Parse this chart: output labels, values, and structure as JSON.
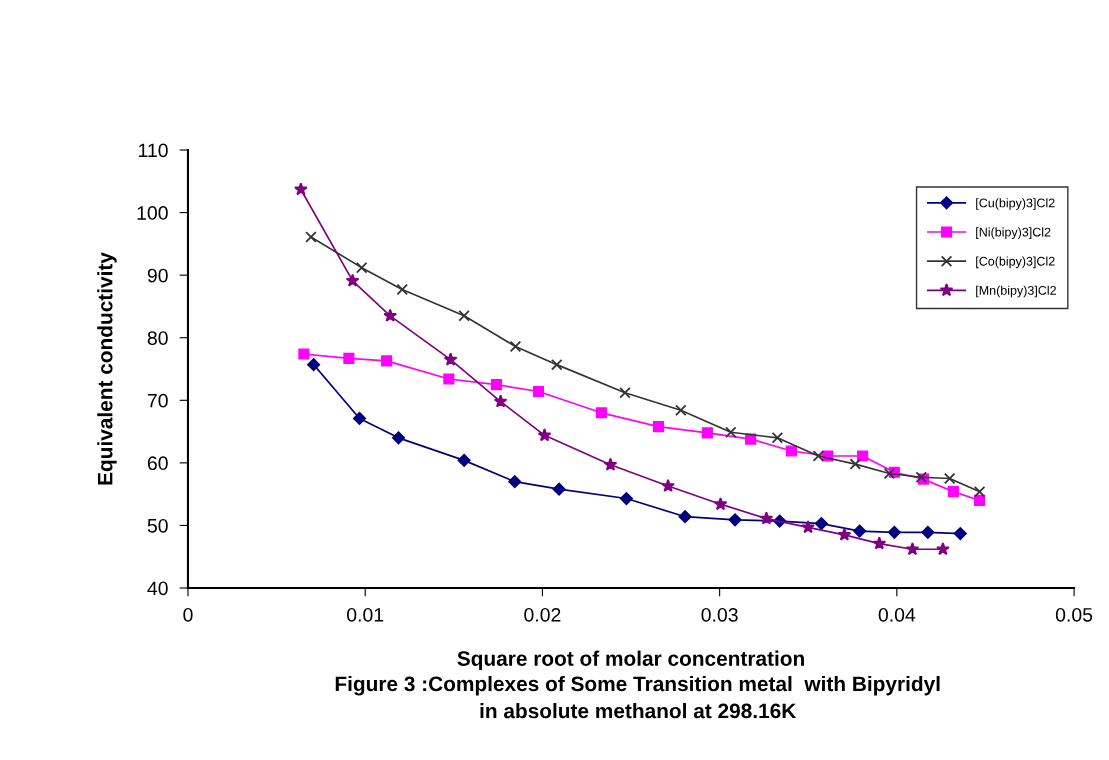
{
  "chart_data": {
    "type": "line",
    "xlabel": "Square root of molar concentration",
    "ylabel": "Equivalent conductivity",
    "annotations": [
      "Figure 3 :Complexes of Some Transition metal  with Bipyridyl\nin absolute methanol at 298.16K"
    ],
    "xlim": [
      0,
      0.05
    ],
    "xticks": [
      0,
      0.01,
      0.02,
      0.03,
      0.04,
      0.05
    ],
    "ylim": [
      40,
      110
    ],
    "yticks": [
      40,
      50,
      60,
      70,
      80,
      90,
      100,
      110
    ],
    "grid": false,
    "legend": "top right",
    "series": [
      {
        "name": "[Cu(bipy)3]Cl2",
        "color": "#000080",
        "marker": "diamond",
        "x": [
          0.00709,
          0.00968,
          0.01188,
          0.01558,
          0.01844,
          0.02094,
          0.02474,
          0.02805,
          0.03087,
          0.03339,
          0.03574,
          0.0379,
          0.03986,
          0.04175,
          0.04358
        ],
        "values": [
          75.7,
          67.1,
          64.0,
          60.4,
          57.0,
          55.8,
          54.3,
          51.4,
          50.9,
          50.7,
          50.3,
          49.1,
          48.9,
          48.9,
          48.7
        ]
      },
      {
        "name": "[Ni(bipy)3]Cl2",
        "color": "#ff00ff",
        "marker": "square",
        "x": [
          0.00654,
          0.00908,
          0.01121,
          0.01472,
          0.01741,
          0.01978,
          0.02333,
          0.02655,
          0.02931,
          0.03175,
          0.03405,
          0.0361,
          0.03807,
          0.03986,
          0.0415,
          0.04319,
          0.04467
        ],
        "values": [
          77.4,
          76.7,
          76.3,
          73.4,
          72.5,
          71.4,
          68.0,
          65.8,
          64.8,
          63.8,
          61.9,
          61.1,
          61.1,
          58.5,
          57.4,
          55.4,
          54.0
        ]
      },
      {
        "name": "[Co(bipy)3]Cl2",
        "color": "#333333",
        "marker": "cross",
        "x": [
          0.00694,
          0.0098,
          0.01209,
          0.01558,
          0.01848,
          0.02081,
          0.02466,
          0.02781,
          0.03063,
          0.03326,
          0.03557,
          0.03766,
          0.03958,
          0.04138,
          0.04298,
          0.04467
        ],
        "values": [
          96.1,
          91.2,
          87.7,
          83.5,
          78.6,
          75.7,
          71.2,
          68.4,
          64.9,
          64.0,
          61.1,
          59.8,
          58.3,
          57.7,
          57.5,
          55.4
        ]
      },
      {
        "name": "[Mn(bipy)3]Cl2",
        "color": "#800080",
        "marker": "star",
        "x": [
          0.00637,
          0.00929,
          0.01141,
          0.01482,
          0.01764,
          0.02012,
          0.02384,
          0.02709,
          0.03005,
          0.03264,
          0.03499,
          0.03704,
          0.03901,
          0.04088,
          0.0426
        ],
        "values": [
          103.7,
          89.1,
          83.5,
          76.5,
          69.8,
          64.4,
          59.7,
          56.3,
          53.4,
          51.1,
          49.7,
          48.5,
          47.1,
          46.2,
          46.2
        ]
      }
    ]
  }
}
